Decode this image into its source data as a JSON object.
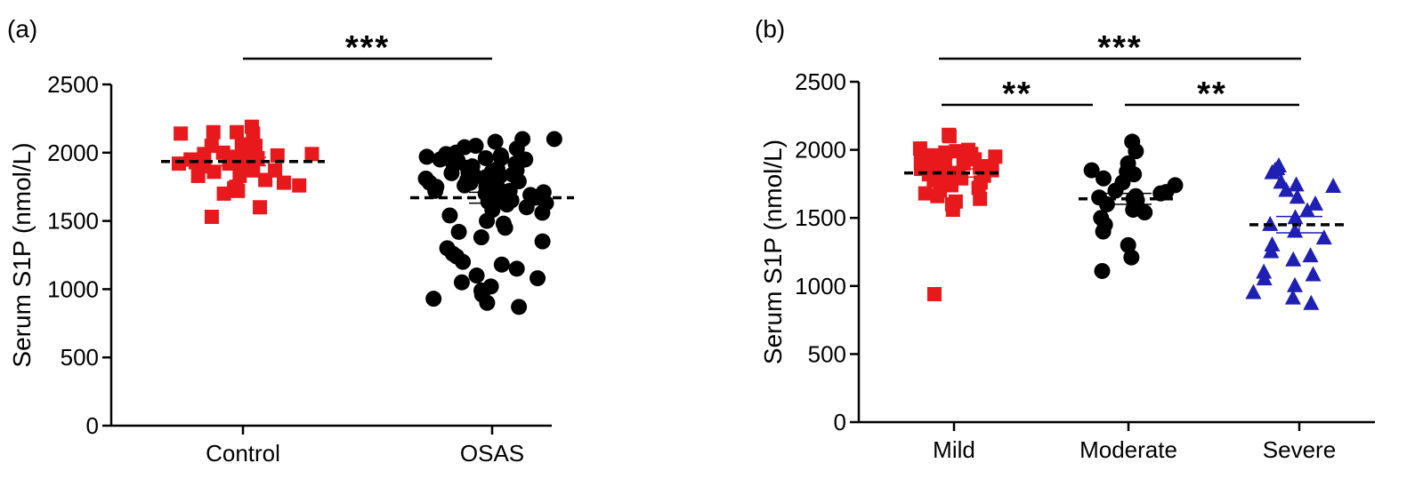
{
  "chart_data": [
    {
      "type": "scatter",
      "panel_label": "(a)",
      "ylabel": "Serum S1P (nmol/L)",
      "ylim": [
        0,
        2500
      ],
      "yticks": [
        0,
        500,
        1000,
        1500,
        2000,
        2500
      ],
      "categories": [
        "Control",
        "OSAS"
      ],
      "series": [
        {
          "category": "Control",
          "marker": "square",
          "color": "#e8191c",
          "mean": 1935,
          "sem": 30,
          "values": [
            2060,
            2050,
            2150,
            2140,
            2190,
            2150,
            2140,
            2040,
            2050,
            2000,
            2000,
            1990,
            1990,
            1980,
            1970,
            1960,
            1950,
            1950,
            1940,
            1930,
            1920,
            1920,
            1900,
            1880,
            1870,
            1870,
            1860,
            1830,
            1830,
            1800,
            1780,
            1750,
            1740,
            1720,
            1700,
            1600,
            1530,
            1760
          ]
        },
        {
          "category": "OSAS",
          "marker": "circle",
          "color": "#000000",
          "mean": 1670,
          "sem": 40,
          "values": [
            2100,
            2100,
            2080,
            2050,
            2040,
            2030,
            2000,
            1990,
            1980,
            1970,
            1960,
            1960,
            1950,
            1950,
            1940,
            1930,
            1920,
            1910,
            1900,
            1890,
            1880,
            1870,
            1860,
            1860,
            1850,
            1850,
            1840,
            1840,
            1830,
            1820,
            1820,
            1810,
            1800,
            1800,
            1790,
            1780,
            1780,
            1770,
            1760,
            1750,
            1750,
            1740,
            1730,
            1720,
            1720,
            1710,
            1700,
            1690,
            1680,
            1670,
            1660,
            1650,
            1640,
            1630,
            1620,
            1600,
            1580,
            1560,
            1540,
            1500,
            1480,
            1450,
            1420,
            1380,
            1350,
            1300,
            1260,
            1240,
            1200,
            1180,
            1150,
            1100,
            1080,
            1050,
            1020,
            990,
            960,
            930,
            900,
            870
          ]
        }
      ],
      "significance": [
        {
          "from": "Control",
          "to": "OSAS",
          "label": "***"
        }
      ]
    },
    {
      "type": "scatter",
      "panel_label": "(b)",
      "ylabel": "Serum S1P (nmol/L)",
      "ylim": [
        0,
        2500
      ],
      "yticks": [
        0,
        500,
        1000,
        1500,
        2000,
        2500
      ],
      "categories": [
        "Mild",
        "Moderate",
        "Severe"
      ],
      "series": [
        {
          "category": "Mild",
          "marker": "square",
          "color": "#e8191c",
          "mean": 1830,
          "sem": 30,
          "values": [
            2110,
            2100,
            2010,
            2000,
            1990,
            1980,
            1970,
            1960,
            1950,
            1940,
            1930,
            1920,
            1910,
            1900,
            1900,
            1890,
            1880,
            1870,
            1870,
            1860,
            1850,
            1840,
            1830,
            1820,
            1810,
            1800,
            1790,
            1780,
            1770,
            1760,
            1750,
            1740,
            1720,
            1700,
            1680,
            1660,
            1640,
            1620,
            1600,
            1560,
            940
          ]
        },
        {
          "category": "Moderate",
          "marker": "circle",
          "color": "#000000",
          "mean": 1640,
          "sem": 40,
          "values": [
            2060,
            1990,
            1900,
            1850,
            1840,
            1820,
            1790,
            1760,
            1740,
            1700,
            1690,
            1680,
            1660,
            1650,
            1640,
            1630,
            1600,
            1560,
            1540,
            1500,
            1450,
            1400,
            1300,
            1210,
            1110
          ]
        },
        {
          "category": "Severe",
          "marker": "triangle",
          "color": "#1f1fb4",
          "mean": 1450,
          "sem": 60,
          "values": [
            1880,
            1860,
            1850,
            1830,
            1760,
            1740,
            1730,
            1700,
            1650,
            1600,
            1550,
            1500,
            1450,
            1400,
            1350,
            1300,
            1250,
            1220,
            1190,
            1100,
            1080,
            1050,
            1000,
            950,
            910,
            870
          ]
        }
      ],
      "significance": [
        {
          "from": "Mild",
          "to": "Severe",
          "label": "***"
        },
        {
          "from": "Mild",
          "to": "Moderate",
          "label": "**"
        },
        {
          "from": "Moderate",
          "to": "Severe",
          "label": "**"
        }
      ]
    }
  ]
}
